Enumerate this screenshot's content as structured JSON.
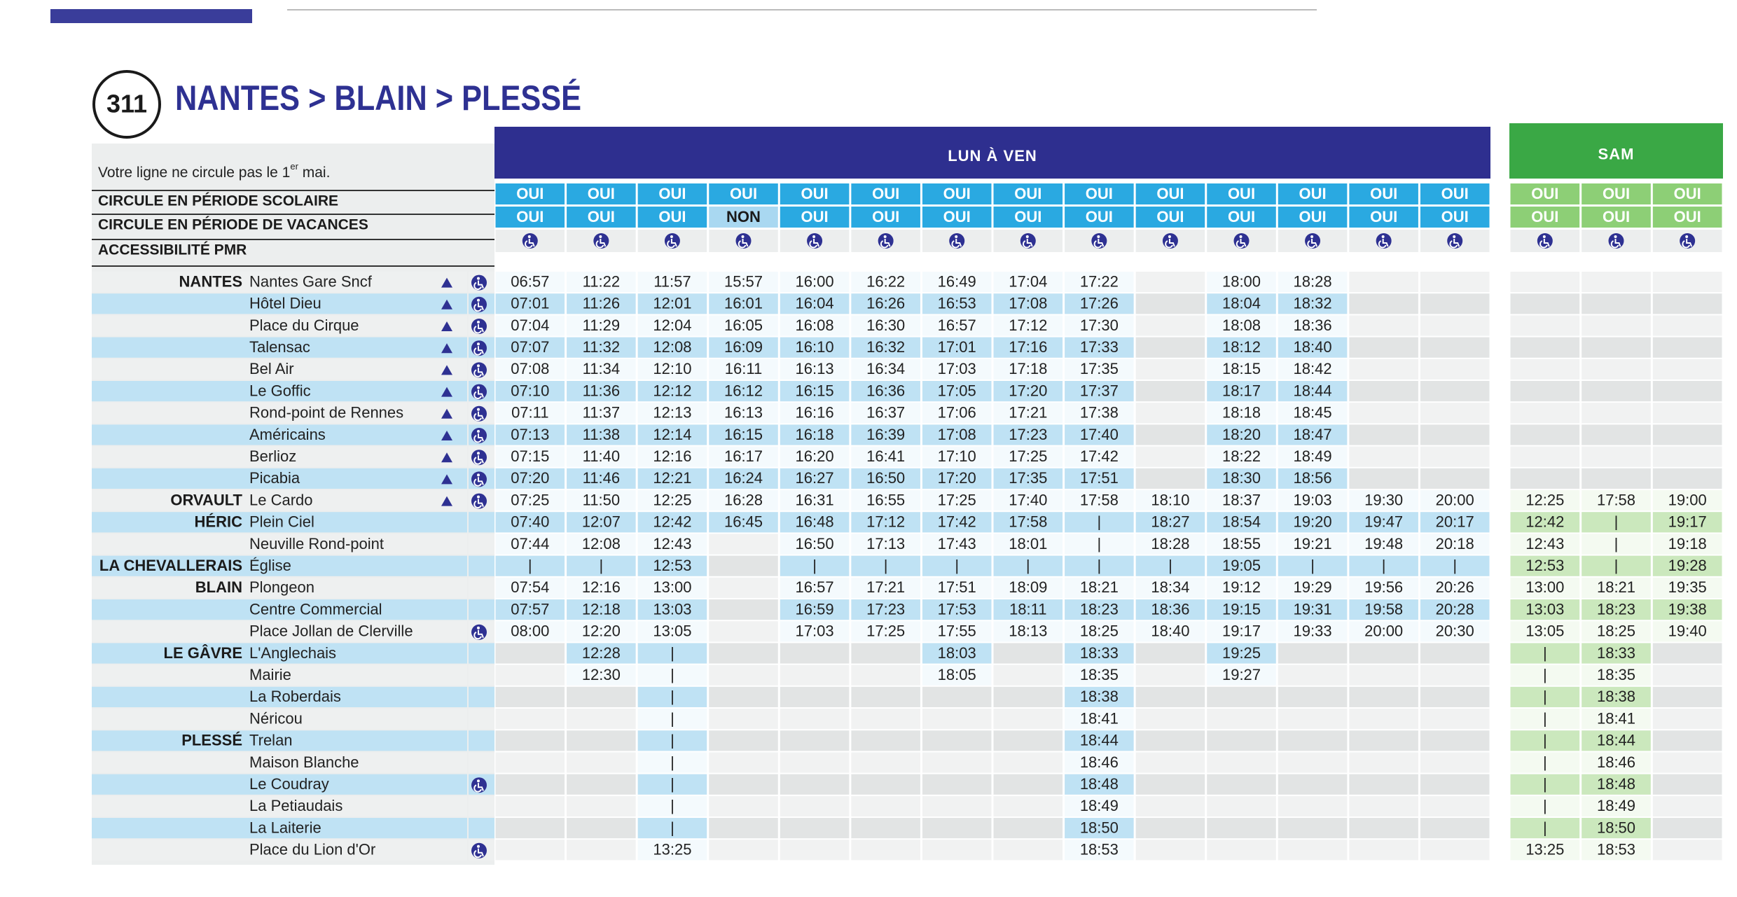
{
  "header": {
    "line_number": "311",
    "title": "NANTES > BLAIN > PLESSÉ"
  },
  "note": [
    "Votre ligne ne circule pas le 1",
    "er",
    " mai."
  ],
  "row_labels": [
    "CIRCULE EN PÉRIODE SCOLAIRE",
    "CIRCULE EN PÉRIODE DE VACANCES",
    "ACCESSIBILITÉ PMR"
  ],
  "stops": [
    {
      "town": "NANTES",
      "name": "Nantes Gare Sncf",
      "triangle": true,
      "pmr": true
    },
    {
      "name": "Hôtel Dieu",
      "triangle": true,
      "pmr": true
    },
    {
      "name": "Place du Cirque",
      "triangle": true,
      "pmr": true
    },
    {
      "name": "Talensac",
      "triangle": true,
      "pmr": true
    },
    {
      "name": "Bel Air",
      "triangle": true,
      "pmr": true
    },
    {
      "name": "Le Goffic",
      "triangle": true,
      "pmr": true
    },
    {
      "name": "Rond-point de Rennes",
      "triangle": true,
      "pmr": true
    },
    {
      "name": "Américains",
      "triangle": true,
      "pmr": true
    },
    {
      "name": "Berlioz",
      "triangle": true,
      "pmr": true
    },
    {
      "name": "Picabia",
      "triangle": true,
      "pmr": true
    },
    {
      "town": "ORVAULT",
      "name": "Le Cardo",
      "triangle": true,
      "pmr": true
    },
    {
      "town": "HÉRIC",
      "name": "Plein Ciel"
    },
    {
      "name": "Neuville Rond-point"
    },
    {
      "town": "LA CHEVALLERAIS",
      "name": "Église"
    },
    {
      "town": "BLAIN",
      "name": "Plongeon"
    },
    {
      "name": "Centre Commercial"
    },
    {
      "name": "Place Jollan de Clerville",
      "pmr": true
    },
    {
      "town": "LE GÂVRE",
      "name": "L'Anglechais"
    },
    {
      "name": "Mairie"
    },
    {
      "name": "La Roberdais"
    },
    {
      "name": "Néricou"
    },
    {
      "town": "PLESSÉ",
      "name": "Trelan"
    },
    {
      "name": "Maison Blanche"
    },
    {
      "name": "Le Coudray",
      "pmr": true
    },
    {
      "name": "La Petiaudais"
    },
    {
      "name": "La Laiterie"
    },
    {
      "name": "Place du Lion d'Or",
      "pmr": true
    }
  ],
  "weekday": {
    "label": "LUN À VEN",
    "scolaire": [
      "OUI",
      "OUI",
      "OUI",
      "OUI",
      "OUI",
      "OUI",
      "OUI",
      "OUI",
      "OUI",
      "OUI",
      "OUI",
      "OUI",
      "OUI",
      "OUI"
    ],
    "vacances": [
      "OUI",
      "OUI",
      "OUI",
      "NON",
      "OUI",
      "OUI",
      "OUI",
      "OUI",
      "OUI",
      "OUI",
      "OUI",
      "OUI",
      "OUI",
      "OUI"
    ],
    "trips": [
      [
        "06:57",
        "07:01",
        "07:04",
        "07:07",
        "07:08",
        "07:10",
        "07:11",
        "07:13",
        "07:15",
        "07:20",
        "07:25",
        "07:40",
        "07:44",
        "|",
        "07:54",
        "07:57",
        "08:00",
        null,
        null,
        null,
        null,
        null,
        null,
        null,
        null,
        null,
        null
      ],
      [
        "11:22",
        "11:26",
        "11:29",
        "11:32",
        "11:34",
        "11:36",
        "11:37",
        "11:38",
        "11:40",
        "11:46",
        "11:50",
        "12:07",
        "12:08",
        "|",
        "12:16",
        "12:18",
        "12:20",
        "12:28",
        "12:30",
        null,
        null,
        null,
        null,
        null,
        null,
        null,
        null
      ],
      [
        "11:57",
        "12:01",
        "12:04",
        "12:08",
        "12:10",
        "12:12",
        "12:13",
        "12:14",
        "12:16",
        "12:21",
        "12:25",
        "12:42",
        "12:43",
        "12:53",
        "13:00",
        "13:03",
        "13:05",
        "|",
        "|",
        "|",
        "|",
        "|",
        "|",
        "|",
        "|",
        "|",
        "13:25"
      ],
      [
        "15:57",
        "16:01",
        "16:05",
        "16:09",
        "16:11",
        "16:12",
        "16:13",
        "16:15",
        "16:17",
        "16:24",
        "16:28",
        "16:45",
        null,
        null,
        null,
        null,
        null,
        null,
        null,
        null,
        null,
        null,
        null,
        null,
        null,
        null,
        null
      ],
      [
        "16:00",
        "16:04",
        "16:08",
        "16:10",
        "16:13",
        "16:15",
        "16:16",
        "16:18",
        "16:20",
        "16:27",
        "16:31",
        "16:48",
        "16:50",
        "|",
        "16:57",
        "16:59",
        "17:03",
        null,
        null,
        null,
        null,
        null,
        null,
        null,
        null,
        null,
        null
      ],
      [
        "16:22",
        "16:26",
        "16:30",
        "16:32",
        "16:34",
        "16:36",
        "16:37",
        "16:39",
        "16:41",
        "16:50",
        "16:55",
        "17:12",
        "17:13",
        "|",
        "17:21",
        "17:23",
        "17:25",
        null,
        null,
        null,
        null,
        null,
        null,
        null,
        null,
        null,
        null
      ],
      [
        "16:49",
        "16:53",
        "16:57",
        "17:01",
        "17:03",
        "17:05",
        "17:06",
        "17:08",
        "17:10",
        "17:20",
        "17:25",
        "17:42",
        "17:43",
        "|",
        "17:51",
        "17:53",
        "17:55",
        "18:03",
        "18:05",
        null,
        null,
        null,
        null,
        null,
        null,
        null,
        null
      ],
      [
        "17:04",
        "17:08",
        "17:12",
        "17:16",
        "17:18",
        "17:20",
        "17:21",
        "17:23",
        "17:25",
        "17:35",
        "17:40",
        "17:58",
        "18:01",
        "|",
        "18:09",
        "18:11",
        "18:13",
        null,
        null,
        null,
        null,
        null,
        null,
        null,
        null,
        null,
        null
      ],
      [
        "17:22",
        "17:26",
        "17:30",
        "17:33",
        "17:35",
        "17:37",
        "17:38",
        "17:40",
        "17:42",
        "17:51",
        "17:58",
        "|",
        "|",
        "|",
        "18:21",
        "18:23",
        "18:25",
        "18:33",
        "18:35",
        "18:38",
        "18:41",
        "18:44",
        "18:46",
        "18:48",
        "18:49",
        "18:50",
        "18:53"
      ],
      [
        null,
        null,
        null,
        null,
        null,
        null,
        null,
        null,
        null,
        null,
        "18:10",
        "18:27",
        "18:28",
        "|",
        "18:34",
        "18:36",
        "18:40",
        null,
        null,
        null,
        null,
        null,
        null,
        null,
        null,
        null,
        null
      ],
      [
        "18:00",
        "18:04",
        "18:08",
        "18:12",
        "18:15",
        "18:17",
        "18:18",
        "18:20",
        "18:22",
        "18:30",
        "18:37",
        "18:54",
        "18:55",
        "19:05",
        "19:12",
        "19:15",
        "19:17",
        "19:25",
        "19:27",
        null,
        null,
        null,
        null,
        null,
        null,
        null,
        null
      ],
      [
        "18:28",
        "18:32",
        "18:36",
        "18:40",
        "18:42",
        "18:44",
        "18:45",
        "18:47",
        "18:49",
        "18:56",
        "19:03",
        "19:20",
        "19:21",
        "|",
        "19:29",
        "19:31",
        "19:33",
        null,
        null,
        null,
        null,
        null,
        null,
        null,
        null,
        null,
        null
      ],
      [
        null,
        null,
        null,
        null,
        null,
        null,
        null,
        null,
        null,
        null,
        "19:30",
        "19:47",
        "19:48",
        "|",
        "19:56",
        "19:58",
        "20:00",
        null,
        null,
        null,
        null,
        null,
        null,
        null,
        null,
        null,
        null
      ],
      [
        null,
        null,
        null,
        null,
        null,
        null,
        null,
        null,
        null,
        null,
        "20:00",
        "20:17",
        "20:18",
        "|",
        "20:26",
        "20:28",
        "20:30",
        null,
        null,
        null,
        null,
        null,
        null,
        null,
        null,
        null,
        null
      ]
    ]
  },
  "saturday": {
    "label": "SAM",
    "scolaire": [
      "OUI",
      "OUI",
      "OUI"
    ],
    "vacances": [
      "OUI",
      "OUI",
      "OUI"
    ],
    "trips": [
      [
        null,
        null,
        null,
        null,
        null,
        null,
        null,
        null,
        null,
        null,
        "12:25",
        "12:42",
        "12:43",
        "12:53",
        "13:00",
        "13:03",
        "13:05",
        "|",
        "|",
        "|",
        "|",
        "|",
        "|",
        "|",
        "|",
        "|",
        "13:25"
      ],
      [
        null,
        null,
        null,
        null,
        null,
        null,
        null,
        null,
        null,
        null,
        "17:58",
        "|",
        "|",
        "|",
        "18:21",
        "18:23",
        "18:25",
        "18:33",
        "18:35",
        "18:38",
        "18:41",
        "18:44",
        "18:46",
        "18:48",
        "18:49",
        "18:50",
        "18:53"
      ],
      [
        null,
        null,
        null,
        null,
        null,
        null,
        null,
        null,
        null,
        null,
        "19:00",
        "19:17",
        "19:18",
        "19:28",
        "19:35",
        "19:38",
        "19:40",
        null,
        null,
        null,
        null,
        null,
        null,
        null,
        null,
        null,
        null
      ]
    ]
  }
}
